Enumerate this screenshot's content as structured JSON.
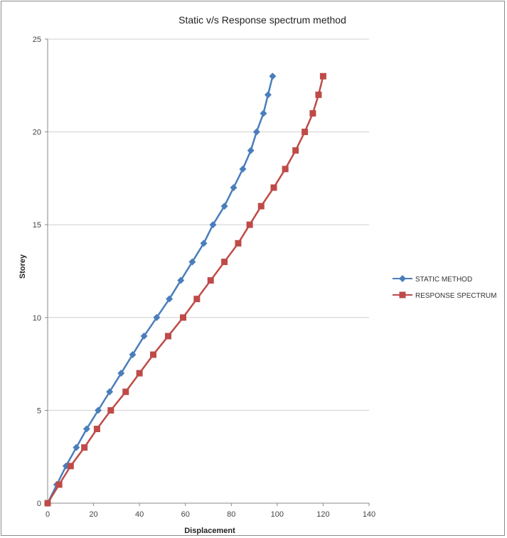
{
  "chart_data": {
    "type": "line",
    "title": "Static v/s Response  spectrum method",
    "xlabel": "Displacement",
    "ylabel": "Storey",
    "xlim": [
      0,
      140
    ],
    "ylim": [
      0,
      25
    ],
    "x_ticks": [
      0,
      20,
      40,
      60,
      80,
      100,
      120,
      140
    ],
    "y_ticks": [
      0,
      5,
      10,
      15,
      20,
      25
    ],
    "grid": "horizontal",
    "legend_position": "right",
    "series": [
      {
        "name": "STATIC METHOD",
        "color": "#4a7ebb",
        "marker": "diamond",
        "x": [
          0,
          4,
          8,
          12.5,
          17,
          22,
          27,
          32,
          37,
          42,
          47.5,
          53,
          58,
          63,
          68,
          72,
          77,
          81,
          85,
          88.5,
          91,
          94,
          96,
          98
        ],
        "y": [
          0,
          1,
          2,
          3,
          4,
          5,
          6,
          7,
          8,
          9,
          10,
          11,
          12,
          13,
          14,
          15,
          16,
          17,
          18,
          19,
          20,
          21,
          22,
          23
        ]
      },
      {
        "name": "RESPONSE SPECTRUM",
        "color": "#be4b48",
        "marker": "square",
        "x": [
          0,
          5,
          10,
          16,
          21.5,
          27.5,
          34,
          40,
          46,
          52.5,
          59,
          65,
          71,
          77,
          83,
          88,
          93,
          98.5,
          103.5,
          108,
          112,
          115.5,
          118,
          120
        ],
        "y": [
          0,
          1,
          2,
          3,
          4,
          5,
          6,
          7,
          8,
          9,
          10,
          11,
          12,
          13,
          14,
          15,
          16,
          17,
          18,
          19,
          20,
          21,
          22,
          23
        ]
      }
    ]
  }
}
